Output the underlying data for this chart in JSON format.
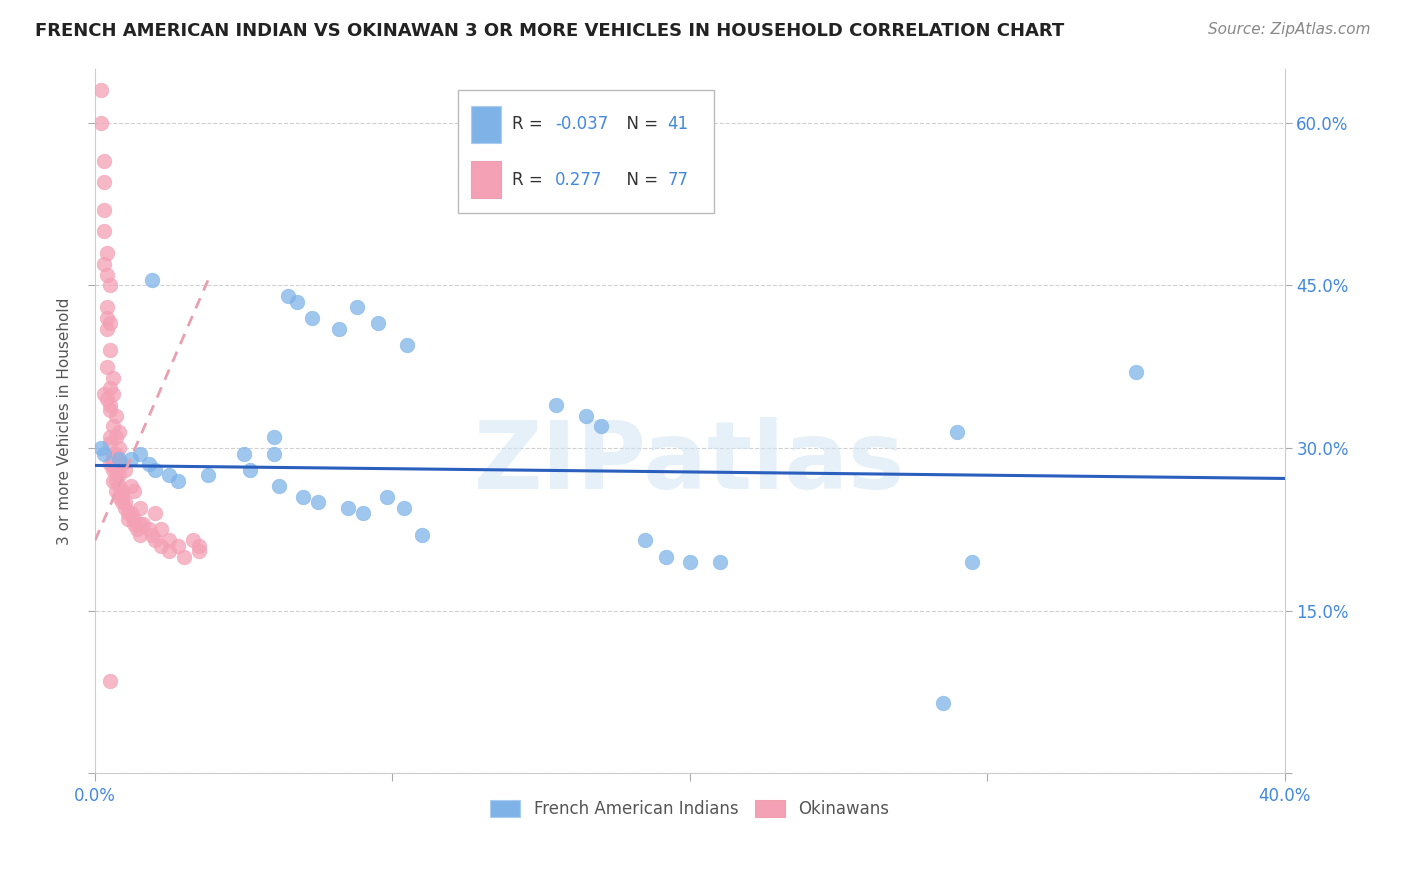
{
  "title": "FRENCH AMERICAN INDIAN VS OKINAWAN 3 OR MORE VEHICLES IN HOUSEHOLD CORRELATION CHART",
  "source": "Source: ZipAtlas.com",
  "ylabel": "3 or more Vehicles in Household",
  "xlim": [
    0.0,
    0.4
  ],
  "ylim": [
    0.0,
    0.65
  ],
  "x_ticks": [
    0.0,
    0.1,
    0.2,
    0.3,
    0.4
  ],
  "x_tick_labels_show": [
    "0.0%",
    "",
    "",
    "",
    "40.0%"
  ],
  "y_ticks": [
    0.0,
    0.15,
    0.3,
    0.45,
    0.6
  ],
  "y_tick_labels_right": [
    "",
    "15.0%",
    "30.0%",
    "45.0%",
    "60.0%"
  ],
  "grid_color": "#cccccc",
  "background_color": "#ffffff",
  "watermark": "ZIPatlas",
  "blue_color": "#7fb3e8",
  "pink_color": "#f4a0b5",
  "blue_line_color": "#2b5fbe",
  "pink_line_color": "#e8a0b0",
  "R_blue": -0.037,
  "N_blue": 41,
  "R_pink": 0.277,
  "N_pink": 77,
  "blue_points_x": [
    0.019,
    0.065,
    0.068,
    0.073,
    0.082,
    0.088,
    0.095,
    0.105,
    0.002,
    0.003,
    0.008,
    0.012,
    0.015,
    0.018,
    0.02,
    0.025,
    0.028,
    0.038,
    0.05,
    0.052,
    0.06,
    0.06,
    0.062,
    0.07,
    0.075,
    0.085,
    0.09,
    0.098,
    0.104,
    0.11,
    0.165,
    0.17,
    0.185,
    0.192,
    0.2,
    0.21,
    0.29,
    0.295,
    0.35,
    0.285,
    0.155
  ],
  "blue_points_y": [
    0.455,
    0.44,
    0.435,
    0.42,
    0.41,
    0.43,
    0.415,
    0.395,
    0.3,
    0.295,
    0.29,
    0.29,
    0.295,
    0.285,
    0.28,
    0.275,
    0.27,
    0.275,
    0.295,
    0.28,
    0.295,
    0.31,
    0.265,
    0.255,
    0.25,
    0.245,
    0.24,
    0.255,
    0.245,
    0.22,
    0.33,
    0.32,
    0.215,
    0.2,
    0.195,
    0.195,
    0.315,
    0.195,
    0.37,
    0.065,
    0.34
  ],
  "pink_points_x": [
    0.002,
    0.003,
    0.003,
    0.003,
    0.004,
    0.004,
    0.004,
    0.005,
    0.005,
    0.005,
    0.005,
    0.005,
    0.006,
    0.006,
    0.006,
    0.006,
    0.007,
    0.007,
    0.007,
    0.007,
    0.008,
    0.008,
    0.008,
    0.009,
    0.009,
    0.009,
    0.01,
    0.01,
    0.011,
    0.011,
    0.012,
    0.012,
    0.013,
    0.013,
    0.014,
    0.015,
    0.015,
    0.016,
    0.018,
    0.019,
    0.02,
    0.022,
    0.022,
    0.025,
    0.025,
    0.028,
    0.03,
    0.033,
    0.035,
    0.002,
    0.003,
    0.004,
    0.005,
    0.006,
    0.007,
    0.008,
    0.003,
    0.004,
    0.005,
    0.004,
    0.005,
    0.006,
    0.003,
    0.004,
    0.005,
    0.006,
    0.007,
    0.007,
    0.008,
    0.009,
    0.01,
    0.013,
    0.015,
    0.02,
    0.005,
    0.006,
    0.035
  ],
  "pink_points_y": [
    0.6,
    0.565,
    0.52,
    0.47,
    0.46,
    0.42,
    0.375,
    0.355,
    0.34,
    0.31,
    0.305,
    0.285,
    0.285,
    0.27,
    0.295,
    0.28,
    0.28,
    0.29,
    0.27,
    0.26,
    0.275,
    0.265,
    0.255,
    0.26,
    0.255,
    0.25,
    0.245,
    0.25,
    0.24,
    0.235,
    0.265,
    0.24,
    0.235,
    0.23,
    0.225,
    0.23,
    0.22,
    0.23,
    0.225,
    0.22,
    0.215,
    0.225,
    0.21,
    0.215,
    0.205,
    0.21,
    0.2,
    0.215,
    0.21,
    0.63,
    0.545,
    0.41,
    0.39,
    0.365,
    0.33,
    0.315,
    0.5,
    0.48,
    0.45,
    0.43,
    0.415,
    0.35,
    0.35,
    0.345,
    0.335,
    0.32,
    0.31,
    0.295,
    0.3,
    0.285,
    0.28,
    0.26,
    0.245,
    0.24,
    0.085,
    0.29,
    0.205
  ],
  "blue_trend_x": [
    0.0,
    0.4
  ],
  "blue_trend_y": [
    0.284,
    0.272
  ],
  "pink_trend_x": [
    0.0,
    0.038
  ],
  "pink_trend_y": [
    0.215,
    0.455
  ]
}
